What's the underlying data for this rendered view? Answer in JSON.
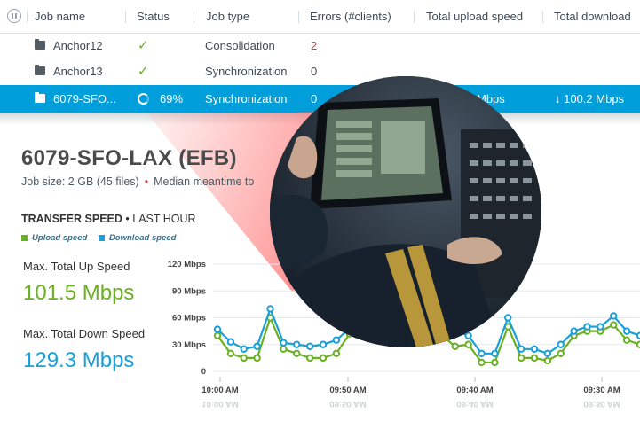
{
  "table": {
    "headers": [
      "Job name",
      "Status",
      "Job type",
      "Errors (#clients)",
      "Total upload speed",
      "Total download"
    ],
    "rows": [
      {
        "name": "Anchor12",
        "status": "✓",
        "type": "Consolidation",
        "errors": "2",
        "upload": "",
        "download": ""
      },
      {
        "name": "Anchor13",
        "status": "✓",
        "type": "Synchronization",
        "errors": "0",
        "upload": "",
        "download": ""
      },
      {
        "name": "6079-SFO...",
        "status": "69%",
        "type": "Synchronization",
        "errors": "0",
        "upload": "Mbps",
        "download": "↓ 100.2 Mbps"
      }
    ],
    "progress": 0.69
  },
  "detail": {
    "title": "6079-SFO-LAX (EFB)",
    "job_size": "Job size: 2 GB (45 files)",
    "median": "Median meantime to",
    "transfer_label": "TRANSFER SPEED",
    "transfer_range": "• LAST HOUR",
    "legend_upload": "Upload speed",
    "legend_download": "Download speed",
    "max_up_label": "Max. Total Up Speed",
    "max_up_value": "101.5 Mbps",
    "max_down_label": "Max. Total Down Speed",
    "max_down_value": "129.3 Mbps"
  },
  "colors": {
    "accent": "#009edb",
    "upload": "#6ab023",
    "download": "#1a9fd8",
    "error": "#d9403a"
  },
  "chart_data": {
    "type": "line",
    "y_ticks": [
      "120 Mbps",
      "90 Mbps",
      "60 Mbps",
      "30 Mbps",
      "0"
    ],
    "x_ticks": [
      "10:00 AM",
      "09:50 AM",
      "09:40 AM",
      "09:30 AM"
    ],
    "ylim": [
      0,
      120
    ],
    "grid": true,
    "series": [
      {
        "name": "Upload speed",
        "values": [
          40,
          20,
          15,
          15,
          60,
          25,
          20,
          15,
          15,
          20,
          42,
          45,
          45,
          45,
          40,
          40,
          40,
          40,
          28,
          30,
          10,
          10,
          50,
          15,
          15,
          12,
          20,
          40,
          45,
          45,
          52,
          35,
          30
        ]
      },
      {
        "name": "Download speed",
        "values": [
          47,
          33,
          25,
          28,
          70,
          32,
          30,
          28,
          30,
          35,
          48,
          50,
          52,
          52,
          50,
          48,
          48,
          48,
          45,
          40,
          20,
          20,
          60,
          25,
          25,
          20,
          30,
          45,
          50,
          50,
          62,
          45,
          40
        ]
      }
    ]
  }
}
